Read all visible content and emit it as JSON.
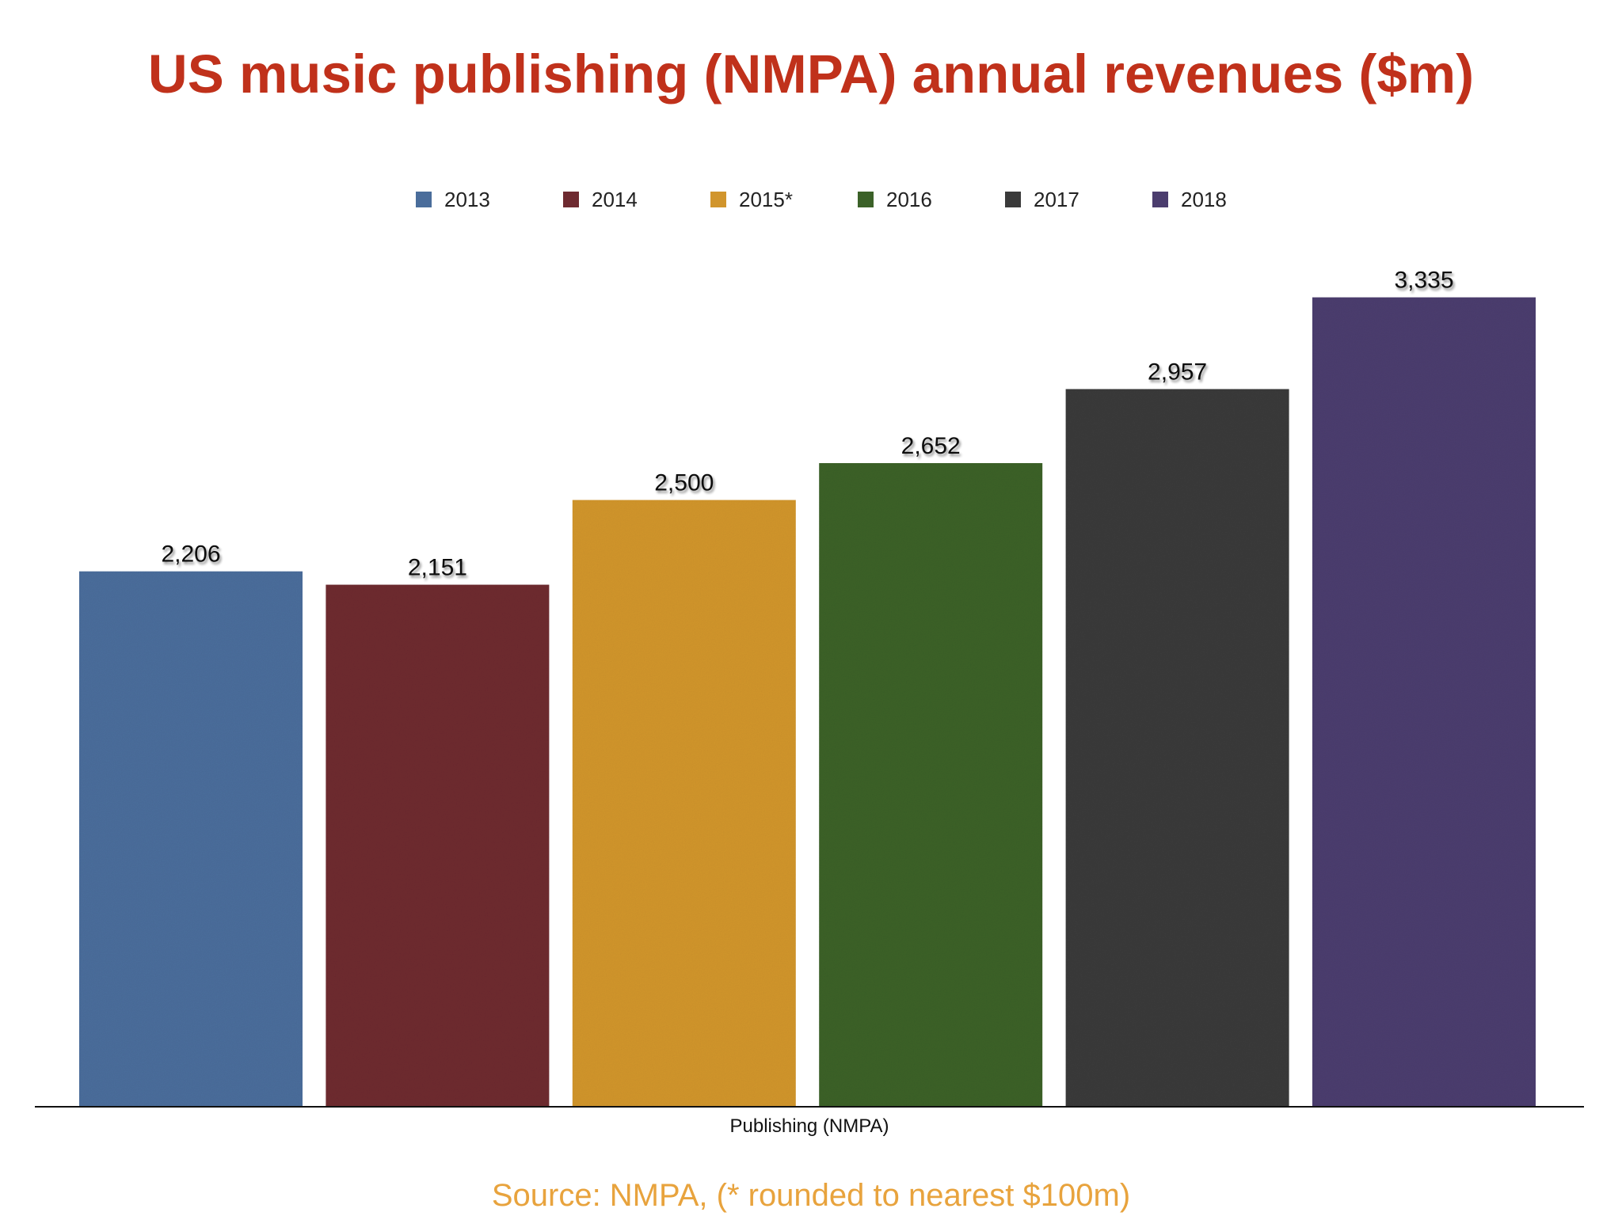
{
  "colors": {
    "title": "#c0311b",
    "source": "#e8a33d",
    "axis": "#111111",
    "label_text": "#111111"
  },
  "source_note": "Source: NMPA, (* rounded to nearest $100m)",
  "chart_data": {
    "type": "bar",
    "title": "US music publishing (NMPA) annual revenues ($m)",
    "xlabel": "Publishing (NMPA)",
    "ylabel": "",
    "categories": [
      "Publishing (NMPA)"
    ],
    "ylim": [
      0,
      3500
    ],
    "grid": false,
    "legend_position": "top-center",
    "series": [
      {
        "name": "2013",
        "values": [
          2206
        ],
        "label": "2,206",
        "color": "#4a6d9b"
      },
      {
        "name": "2014",
        "values": [
          2151
        ],
        "label": "2,151",
        "color": "#6e2a30"
      },
      {
        "name": "2015*",
        "values": [
          2500
        ],
        "label": "2,500",
        "color": "#d1952c"
      },
      {
        "name": "2016",
        "values": [
          2652
        ],
        "label": "2,652",
        "color": "#3b6128"
      },
      {
        "name": "2017",
        "values": [
          2957
        ],
        "label": "2,957",
        "color": "#3a3a3a"
      },
      {
        "name": "2018",
        "values": [
          3335
        ],
        "label": "3,335",
        "color": "#4b3d6e"
      }
    ]
  }
}
